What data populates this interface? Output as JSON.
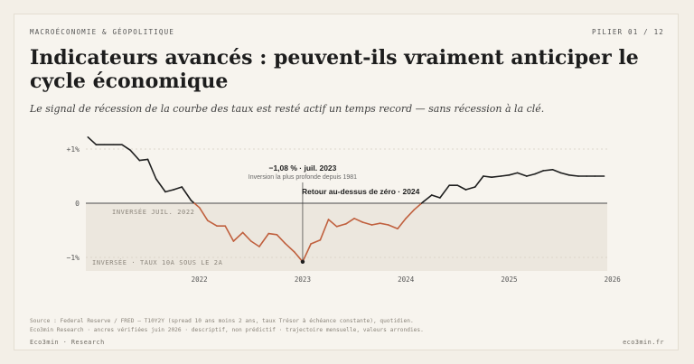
{
  "header": {
    "eyebrow": "MACROÉCONOMIE & GÉOPOLITIQUE",
    "pillar": "PILIER 01 / 12",
    "title": "Indicateurs avancés : peuvent-ils vraiment anticiper le cycle économique",
    "subtitle": "Le signal de récession de la courbe des taux est resté actif un temps record — sans récession à la clé."
  },
  "chart_data": {
    "type": "line",
    "title": "",
    "xlabel": "",
    "ylabel": "",
    "y_ticks": [
      {
        "value": 1,
        "label": "+1%"
      },
      {
        "value": 0,
        "label": "0"
      },
      {
        "value": -1,
        "label": "−1%"
      }
    ],
    "x_ticks": [
      {
        "value": 2022.0,
        "label": "2022"
      },
      {
        "value": 2023.0,
        "label": "2023"
      },
      {
        "value": 2024.0,
        "label": "2024"
      },
      {
        "value": 2025.0,
        "label": "2025"
      },
      {
        "value": 2026.0,
        "label": "2026"
      }
    ],
    "xlim": [
      2021.4,
      2026.45
    ],
    "ylim": [
      -1.25,
      1.25
    ],
    "grid": true,
    "colors": {
      "positive": "#1f1f1f",
      "inverted": "#c0603e",
      "shade": "#ece7de",
      "grid": "#d6d0c5"
    },
    "series": [
      {
        "x": [
          2021.42,
          2021.5,
          2021.58,
          2021.67,
          2021.75,
          2021.83,
          2021.92,
          2022.0,
          2022.08,
          2022.17,
          2022.25,
          2022.33,
          2022.42,
          2022.5,
          2022.58,
          2022.67,
          2022.75,
          2022.83,
          2022.92,
          2023.0,
          2023.08,
          2023.17,
          2023.25,
          2023.33,
          2023.42,
          2023.5,
          2023.58,
          2023.67,
          2023.75,
          2023.83,
          2023.92,
          2024.0,
          2024.08,
          2024.17,
          2024.25,
          2024.33,
          2024.42,
          2024.5,
          2024.58,
          2024.67,
          2024.75,
          2024.83,
          2024.92,
          2025.0,
          2025.08,
          2025.17,
          2025.25,
          2025.33,
          2025.42,
          2025.5,
          2025.58,
          2025.67,
          2025.75,
          2025.83,
          2025.92,
          2026.0,
          2026.08,
          2026.17,
          2026.25,
          2026.33,
          2026.42
        ],
        "y": [
          1.22,
          1.08,
          1.08,
          1.08,
          1.08,
          0.98,
          0.79,
          0.81,
          0.45,
          0.21,
          0.25,
          0.3,
          0.05,
          -0.08,
          -0.32,
          -0.42,
          -0.42,
          -0.7,
          -0.54,
          -0.7,
          -0.8,
          -0.56,
          -0.58,
          -0.74,
          -0.9,
          -1.08,
          -0.75,
          -0.68,
          -0.3,
          -0.43,
          -0.38,
          -0.28,
          -0.35,
          -0.4,
          -0.37,
          -0.4,
          -0.47,
          -0.28,
          -0.12,
          0.03,
          0.15,
          0.1,
          0.33,
          0.33,
          0.25,
          0.3,
          0.5,
          0.48,
          0.5,
          0.52,
          0.56,
          0.5,
          0.54,
          0.6,
          0.62,
          0.56,
          0.52,
          0.5,
          0.5,
          0.5,
          0.5
        ]
      }
    ],
    "shaded_band_label": "INVERSÉE · TAUX 10A SOUS LE 2A",
    "annotations": {
      "inverted_since": "INVERSÉE JUIL. 2022",
      "trough_value": "−1,08 % · juil. 2023",
      "trough_note": "Inversion la plus profonde depuis 1981",
      "return_label": "Retour au-dessus de zéro · 2024",
      "trough_x": 2023.5,
      "trough_y": -1.08
    }
  },
  "footer": {
    "source": "Source : Federal Reserve / FRED — T10Y2Y (spread 10 ans moins 2 ans, taux Trésor à échéance constante), quotidien.",
    "note": "Eco3min Research · ancres vérifiées juin 2026 · descriptif, non prédictif · trajectoire mensuelle, valeurs arrondies.",
    "brand": "Eco3min · Research",
    "site": "eco3min.fr"
  }
}
